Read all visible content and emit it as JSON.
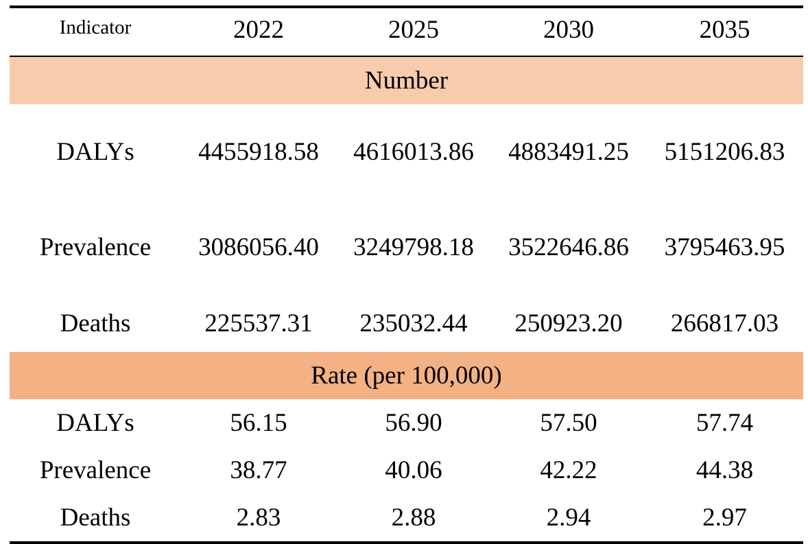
{
  "table": {
    "header": [
      "Indicator",
      "2022",
      "2025",
      "2030",
      "2035"
    ],
    "sections": [
      {
        "title": "Number",
        "band_color": "#f7cbac",
        "rows": [
          {
            "label": "DALYs",
            "values": [
              "4455918.58",
              "4616013.86",
              "4883491.25",
              "5151206.83"
            ]
          },
          {
            "label": "Prevalence",
            "values": [
              "3086056.40",
              "3249798.18",
              "3522646.86",
              "3795463.95"
            ]
          },
          {
            "label": "Deaths",
            "values": [
              "225537.31",
              "235032.44",
              "250923.20",
              "266817.03"
            ]
          }
        ]
      },
      {
        "title": "Rate (per 100,000)",
        "band_color": "#f3b184",
        "rows": [
          {
            "label": "DALYs",
            "values": [
              "56.15",
              "56.90",
              "57.50",
              "57.74"
            ]
          },
          {
            "label": "Prevalence",
            "values": [
              "38.77",
              "40.06",
              "42.22",
              "44.38"
            ]
          },
          {
            "label": "Deaths",
            "values": [
              "2.83",
              "2.88",
              "2.94",
              "2.97"
            ]
          }
        ]
      }
    ]
  }
}
